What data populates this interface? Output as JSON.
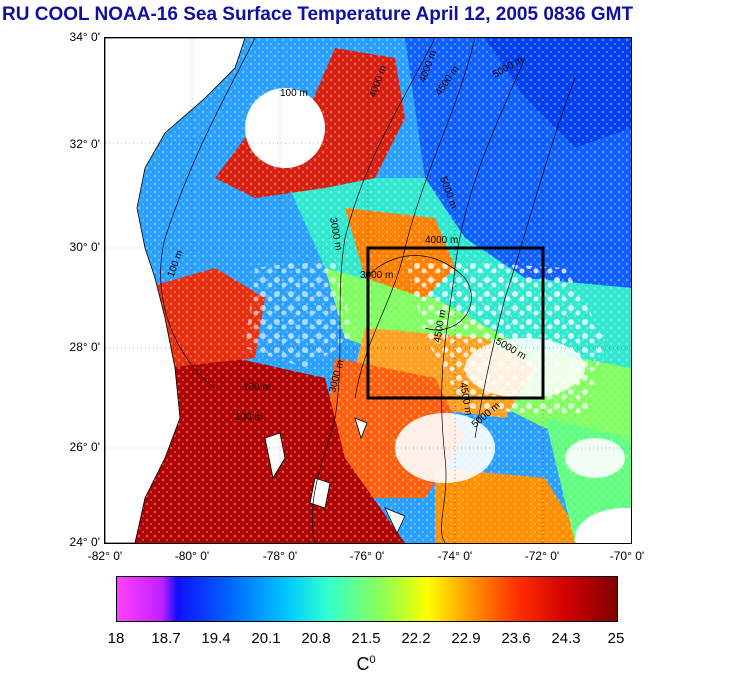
{
  "title": "RU COOL  NOAA-16 Sea Surface Temperature April 12, 2005 0836 GMT",
  "latitude_labels": [
    "34° 0'",
    "32° 0'",
    "30° 0'",
    "28° 0'",
    "26° 0'",
    "24° 0'"
  ],
  "longitude_labels": [
    "-82° 0'",
    "-80° 0'",
    "-78° 0'",
    "-76° 0'",
    "-74° 0'",
    "-72° 0'",
    "-70° 0'"
  ],
  "colorbar": {
    "ticks": [
      "18",
      "18.7",
      "19.4",
      "20.1",
      "20.8",
      "21.5",
      "22.2",
      "22.9",
      "23.6",
      "24.3",
      "25"
    ],
    "unit": "C",
    "unit_sup": "0",
    "range": [
      18,
      25
    ]
  },
  "contour_labels": {
    "shelf": "100 m",
    "d3000": "3000 m",
    "d4000": "4000 m",
    "d4500": "4500 m",
    "d5000": "5000 m"
  },
  "study_box": {
    "lon": [
      -76,
      -72
    ],
    "lat": [
      27,
      30
    ]
  },
  "colors": {
    "title": "#1010a0",
    "land": "#ffffff",
    "warm": "#d01000",
    "cool": "#1060ff"
  }
}
